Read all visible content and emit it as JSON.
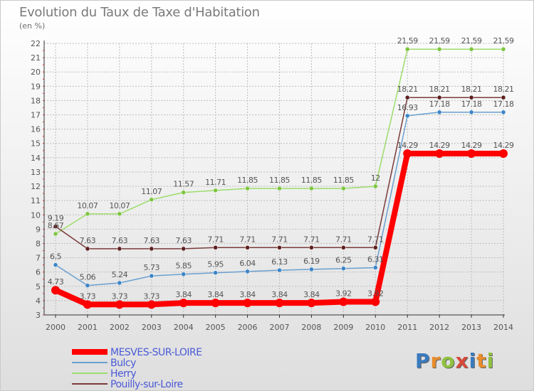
{
  "title": "Evolution du Taux de Taxe d'Habitation",
  "unit": "(en %)",
  "colors": {
    "grid": "#bdbdbd",
    "axis": "#333333",
    "label": "#555555"
  },
  "logo": {
    "letters": [
      "P",
      "r",
      "o",
      "x",
      "i",
      "t",
      "i"
    ],
    "colors": [
      "#3a7bbf",
      "#e98d2c",
      "#8fc23f",
      "#d64a3a",
      "#3a7bbf",
      "#e98d2c",
      "#8fc23f"
    ]
  },
  "chart_data": {
    "type": "line",
    "x": [
      "2000",
      "2001",
      "2002",
      "2003",
      "2004",
      "2005",
      "2006",
      "2007",
      "2008",
      "2009",
      "2010",
      "2011",
      "2012",
      "2013",
      "2014"
    ],
    "ylim": [
      3,
      22
    ],
    "yticks": [
      3,
      4,
      5,
      6,
      7,
      8,
      9,
      10,
      11,
      12,
      13,
      14,
      15,
      16,
      17,
      18,
      19,
      20,
      21,
      22
    ],
    "grid": true,
    "legend": "bottom-left",
    "series": [
      {
        "name": "MESVES-SUR-LOIRE",
        "color": "#ff0000",
        "marker": "#ff0000",
        "width": 8,
        "values": [
          4.73,
          3.73,
          3.73,
          3.73,
          3.84,
          3.84,
          3.84,
          3.84,
          3.84,
          3.92,
          3.92,
          14.29,
          14.29,
          14.29,
          14.29
        ],
        "labels": [
          "4.73",
          "3.73",
          "3.73",
          "3.73",
          "3.84",
          "3.84",
          "3.84",
          "3.84",
          "3.84",
          "3.92",
          "3.92",
          "14.29",
          "14.29",
          "14.29",
          "14.29"
        ]
      },
      {
        "name": "Bulcy",
        "color": "#6a9fd0",
        "marker": "#3a84c8",
        "width": 1.5,
        "values": [
          6.5,
          5.06,
          5.24,
          5.73,
          5.85,
          5.95,
          6.04,
          6.13,
          6.19,
          6.25,
          6.31,
          16.93,
          17.18,
          17.18,
          17.18
        ],
        "labels": [
          "6.5",
          "5.06",
          "5.24",
          "5.73",
          "5.85",
          "5.95",
          "6.04",
          "6.13",
          "6.19",
          "6.25",
          "6.31",
          "16.93",
          "17.18",
          "17.18",
          "17.18"
        ]
      },
      {
        "name": "Herry",
        "color": "#9ddd6b",
        "marker": "#7cc63f",
        "width": 1.5,
        "values": [
          8.67,
          10.07,
          10.07,
          11.07,
          11.57,
          11.71,
          11.85,
          11.85,
          11.85,
          11.85,
          12,
          21.59,
          21.59,
          21.59,
          21.59
        ],
        "labels": [
          "8.67",
          "10.07",
          "10.07",
          "11.07",
          "11.57",
          "11.71",
          "11.85",
          "11.85",
          "11.85",
          "11.85",
          "12",
          "21.59",
          "21.59",
          "21.59",
          "21.59"
        ]
      },
      {
        "name": "Pouilly-sur-Loire",
        "color": "#7a3a3a",
        "marker": "#5e1f1f",
        "width": 1.5,
        "values": [
          9.19,
          7.63,
          7.63,
          7.63,
          7.63,
          7.71,
          7.71,
          7.71,
          7.71,
          7.71,
          7.71,
          18.21,
          18.21,
          18.21,
          18.21
        ],
        "labels": [
          "9.19",
          "7.63",
          "7.63",
          "7.63",
          "7.63",
          "7.71",
          "7.71",
          "7.71",
          "7.71",
          "7.71",
          "7.71",
          "18.21",
          "18.21",
          "18.21",
          "18.21"
        ]
      }
    ]
  }
}
